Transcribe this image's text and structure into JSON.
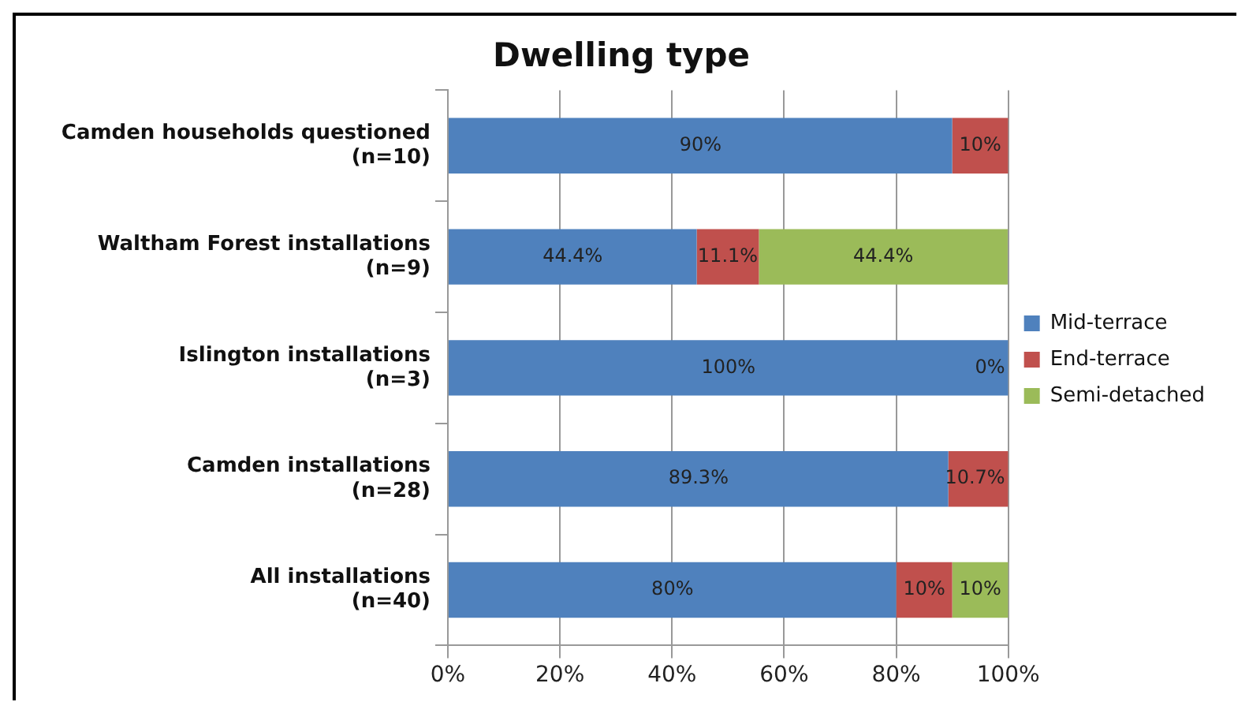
{
  "chart_data": {
    "type": "bar",
    "orientation": "horizontal",
    "stacked": true,
    "title": "Dwelling type",
    "categories": [
      "Camden households questioned\n(n=10)",
      "Waltham Forest installations\n(n=9)",
      "Islington installations\n(n=3)",
      "Camden installations\n(n=28)",
      "All installations\n(n=40)"
    ],
    "series": [
      {
        "name": "Mid-terrace",
        "color": "#4f81bd",
        "values": [
          90,
          44.4,
          100,
          89.3,
          80
        ],
        "value_labels": [
          "90%",
          "44.4%",
          "100%",
          "89.3%",
          "80%"
        ]
      },
      {
        "name": "End-terrace",
        "color": "#c0504d",
        "values": [
          10,
          11.1,
          0,
          10.7,
          10
        ],
        "value_labels": [
          "10%",
          "11.1%",
          "0%",
          "10.7%",
          "10%"
        ]
      },
      {
        "name": "Semi-detached",
        "color": "#9bbb59",
        "values": [
          null,
          44.4,
          null,
          null,
          10
        ],
        "value_labels": [
          null,
          "44.4%",
          null,
          null,
          "10%"
        ]
      }
    ],
    "xlim": [
      0,
      100
    ],
    "xticks": [
      {
        "value": 0,
        "label": "0%"
      },
      {
        "value": 20,
        "label": "20%"
      },
      {
        "value": 40,
        "label": "40%"
      },
      {
        "value": 60,
        "label": "60%"
      },
      {
        "value": 80,
        "label": "80%"
      },
      {
        "value": 100,
        "label": "100%"
      }
    ],
    "grid": "x",
    "legend": "right"
  }
}
